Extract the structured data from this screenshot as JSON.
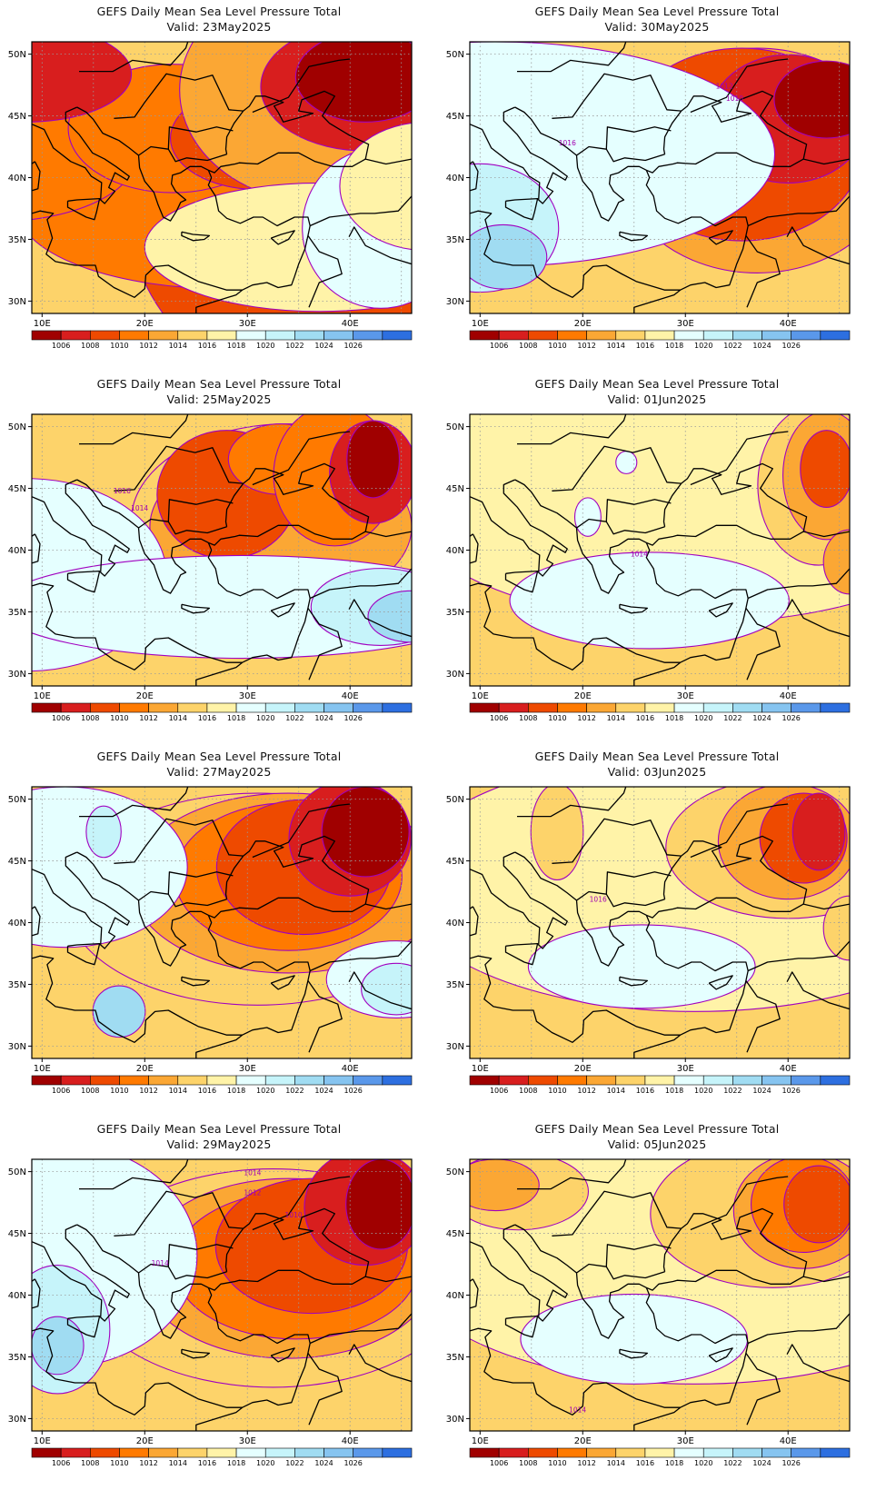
{
  "legend": {
    "colors": [
      "#a00000",
      "#d81e1e",
      "#ee4a00",
      "#ff7a00",
      "#fba734",
      "#fdd36a",
      "#fff3a8",
      "#e5ffff",
      "#c6f4fa",
      "#a0dcf2",
      "#86c4f0",
      "#5a98ea",
      "#2d6fe0"
    ],
    "labels": [
      "1006",
      "1008",
      "1010",
      "1012",
      "1014",
      "1016",
      "1018",
      "1020",
      "1022",
      "1024",
      "1026"
    ]
  },
  "axes": {
    "lat_labels": [
      "50N",
      "45N",
      "40N",
      "35N",
      "30N"
    ],
    "lon_labels": [
      "10E",
      "20E",
      "30E",
      "40E"
    ]
  },
  "panels": [
    {
      "title": "GEFS Daily Mean Sea Level Pressure Total",
      "valid": "Valid: 23May2025",
      "contour_labels": [],
      "blobs": [
        [
          2,
          50,
          -0.5,
          34,
          6.5
        ],
        [
          3,
          24,
          -0.2,
          24,
          2.5
        ],
        [
          3,
          -6,
          1.4,
          16,
          2
        ],
        [
          3,
          17,
          2.3,
          12,
          2
        ],
        [
          2,
          28,
          2,
          10,
          1.6
        ],
        [
          4,
          36,
          3.5,
          16,
          3.5
        ],
        [
          1,
          42,
          3.6,
          12,
          2
        ],
        [
          0,
          42,
          3.9,
          8,
          1.4
        ],
        [
          1,
          -2,
          4.0,
          12,
          1.5
        ],
        [
          6,
          36,
          -1.4,
          20,
          2
        ],
        [
          7,
          44,
          -0.8,
          9,
          2.5
        ],
        [
          6,
          50,
          0.5,
          10,
          2
        ]
      ]
    },
    {
      "title": "GEFS Daily Mean Sea Level Pressure Total",
      "valid": "Valid: 30May2025",
      "contour_labels": [
        {
          "t": "1012",
          "lon": 33.8,
          "lat": 47.2
        },
        {
          "t": "1010",
          "lon": 34.8,
          "lat": 46.2
        },
        {
          "t": "1016",
          "lon": 18.5,
          "lat": 42.6
        }
      ],
      "blobs": [
        [
          4,
          36,
          1.3,
          16,
          3.5
        ],
        [
          2,
          34,
          1.8,
          14,
          3
        ],
        [
          1,
          40,
          2.6,
          9,
          2
        ],
        [
          0,
          45,
          3.2,
          6,
          1.2
        ],
        [
          7,
          2,
          1.5,
          32,
          3.5
        ],
        [
          8,
          0,
          -0.8,
          9,
          2
        ],
        [
          9,
          3,
          -1.7,
          5,
          1
        ]
      ]
    },
    {
      "title": "GEFS Daily Mean Sea Level Pressure Total",
      "valid": "Valid: 25May2025",
      "contour_labels": [
        {
          "t": "1016",
          "lon": 17.8,
          "lat": 44.6
        },
        {
          "t": "1014",
          "lon": 19.5,
          "lat": 43.2
        }
      ],
      "blobs": [
        [
          5,
          32,
          1.7,
          18,
          3
        ],
        [
          4,
          31,
          1.5,
          15,
          2.5
        ],
        [
          2,
          24,
          2.5,
          8,
          2
        ],
        [
          3,
          31,
          3.6,
          6,
          1.1
        ],
        [
          3,
          38,
          3.1,
          7,
          2.2
        ],
        [
          1,
          43,
          3.2,
          5,
          1.6
        ],
        [
          0,
          43,
          3.6,
          3,
          1.2
        ],
        [
          7,
          -2,
          0,
          16,
          3
        ],
        [
          7,
          26,
          -1.0,
          28,
          1.6
        ],
        [
          8,
          44,
          -1.0,
          8,
          1.2
        ],
        [
          9,
          48,
          -1.3,
          5,
          0.8
        ]
      ]
    },
    {
      "title": "GEFS Daily Mean Sea Level Pressure Total",
      "valid": "Valid: 01Jun2025",
      "contour_labels": [
        {
          "t": "1014",
          "lon": 25.5,
          "lat": 39.5
        }
      ],
      "blobs": [
        [
          6,
          28,
          2.5,
          34,
          4
        ],
        [
          5,
          44,
          2.8,
          7,
          2.5
        ],
        [
          4,
          45,
          3.1,
          5,
          2.0
        ],
        [
          2,
          45,
          3.3,
          3,
          1.2
        ],
        [
          7,
          22,
          -0.8,
          16,
          1.5
        ],
        [
          7,
          19,
          3.5,
          1.2,
          0.35
        ],
        [
          7,
          14,
          1.8,
          1.5,
          0.6
        ],
        [
          4,
          48,
          0.4,
          3,
          1
        ]
      ]
    },
    {
      "title": "GEFS Daily Mean Sea Level Pressure Total",
      "valid": "Valid: 27May2025",
      "contour_labels": [],
      "blobs": [
        [
          5,
          28,
          1.5,
          22,
          3.3
        ],
        [
          4,
          32,
          2.0,
          18,
          2.8
        ],
        [
          3,
          32,
          2.2,
          13,
          2.3
        ],
        [
          2,
          34,
          2.5,
          10,
          2.1
        ],
        [
          1,
          40,
          3.4,
          7,
          1.8
        ],
        [
          0,
          42,
          3.6,
          5,
          1.4
        ],
        [
          7,
          3,
          2.5,
          14,
          2.5
        ],
        [
          8,
          8,
          3.6,
          2,
          0.8
        ],
        [
          7,
          46,
          -1.0,
          8,
          1.2
        ],
        [
          8,
          46,
          -1.3,
          4,
          0.8
        ],
        [
          9,
          10,
          -2,
          3,
          0.8
        ]
      ]
    },
    {
      "title": "GEFS Daily Mean Sea Level Pressure Total",
      "valid": "Valid: 03Jun2025",
      "contour_labels": [
        {
          "t": "1016",
          "lon": 21.5,
          "lat": 41.7
        }
      ],
      "blobs": [
        [
          6,
          28,
          2,
          34,
          4
        ],
        [
          5,
          40,
          3.1,
          14,
          2.2
        ],
        [
          4,
          40,
          3.3,
          8,
          1.8
        ],
        [
          2,
          42,
          3.4,
          5,
          1.4
        ],
        [
          1,
          44,
          3.6,
          3,
          1.2
        ],
        [
          7,
          21,
          -0.6,
          13,
          1.3
        ],
        [
          5,
          10,
          3.6,
          3,
          1.5
        ],
        [
          5,
          48,
          0.6,
          3,
          1
        ]
      ]
    },
    {
      "title": "GEFS Daily Mean Sea Level Pressure Total",
      "valid": "Valid: 29May2025",
      "contour_labels": [
        {
          "t": "1014",
          "lon": 30.5,
          "lat": 49.7
        },
        {
          "t": "1012",
          "lon": 30.5,
          "lat": 48.1
        },
        {
          "t": "1010",
          "lon": 34.5,
          "lat": 46.3
        },
        {
          "t": "1014",
          "lon": 21.5,
          "lat": 42.4
        }
      ],
      "blobs": [
        [
          5,
          30,
          1.3,
          22,
          3.4
        ],
        [
          4,
          32,
          1.6,
          17,
          2.8
        ],
        [
          3,
          33,
          1.7,
          14,
          2.3
        ],
        [
          2,
          35,
          2.3,
          11,
          2.1
        ],
        [
          1,
          42,
          3.5,
          7,
          1.8
        ],
        [
          0,
          44,
          3.6,
          4,
          1.4
        ],
        [
          7,
          2,
          2,
          16,
          3.5
        ],
        [
          8,
          2,
          -0.3,
          6,
          2
        ],
        [
          9,
          2,
          -0.8,
          3,
          0.9
        ]
      ]
    },
    {
      "title": "GEFS Daily Mean Sea Level Pressure Total",
      "valid": "Valid: 05Jun2025",
      "contour_labels": [
        {
          "t": "1014",
          "lon": 19.5,
          "lat": 30.5
        }
      ],
      "blobs": [
        [
          6,
          28,
          2,
          34,
          4
        ],
        [
          5,
          38,
          3.3,
          14,
          2.3
        ],
        [
          4,
          42,
          3.4,
          8,
          1.8
        ],
        [
          3,
          42,
          3.6,
          6,
          1.5
        ],
        [
          2,
          44,
          3.6,
          4,
          1.2
        ],
        [
          7,
          20,
          -0.6,
          13,
          1.4
        ],
        [
          5,
          5,
          4.0,
          8,
          1.2
        ],
        [
          4,
          2,
          4.2,
          5,
          0.8
        ]
      ]
    }
  ]
}
